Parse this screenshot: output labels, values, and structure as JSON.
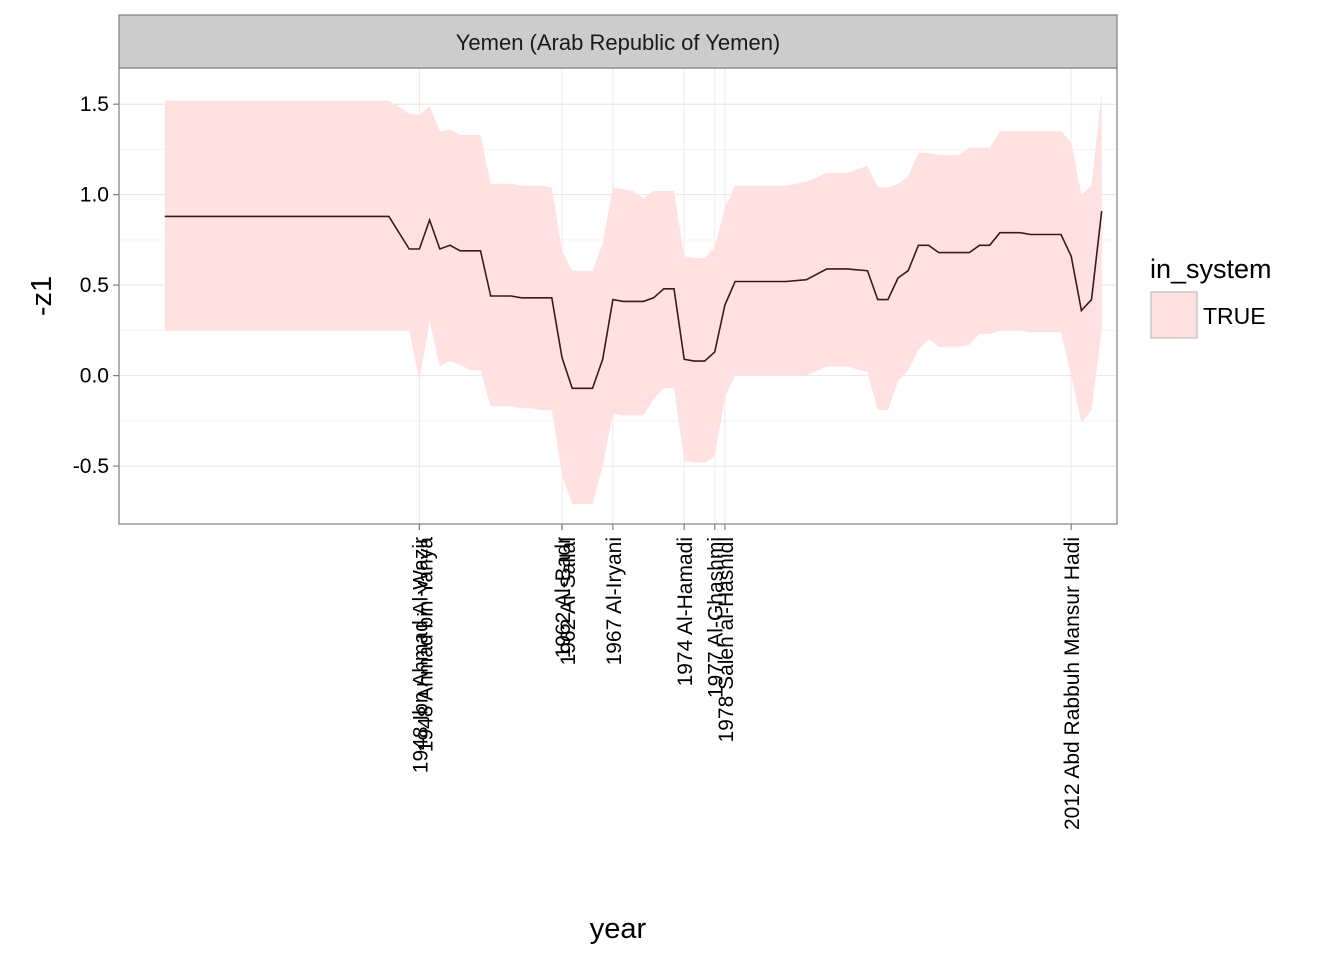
{
  "chart_data": {
    "type": "area",
    "title": "Yemen (Arab Republic of Yemen)",
    "xlabel": "year",
    "ylabel": "-z1",
    "xlim": [
      1918.5,
      2016.5
    ],
    "ylim": [
      -0.82,
      1.7
    ],
    "y_ticks": [
      -0.5,
      0.0,
      0.5,
      1.0,
      1.5
    ],
    "y_tick_labels": [
      "-0.5",
      "0.0",
      "0.5",
      "1.0",
      "1.5"
    ],
    "grid": true,
    "legend": {
      "title": "in_system",
      "entries": [
        {
          "label": "TRUE",
          "fill": "#ffe1e1"
        }
      ],
      "placement": "right"
    },
    "colors": {
      "ribbon": "#ffe1e1",
      "line": "#3a1a1a",
      "strip": "#cccccc",
      "frame": "#7f7f7f"
    },
    "leader_events": [
      {
        "year": 1948,
        "label": "1948 Ibn Ahmad Al-Wazir"
      },
      {
        "year": 1948,
        "label": "1948 Ahmad bin Yahya"
      },
      {
        "year": 1962,
        "label": "1962 Al-Badr"
      },
      {
        "year": 1962,
        "label": "1962 Al-Sallal"
      },
      {
        "year": 1967,
        "label": "1967 Al-Iryani"
      },
      {
        "year": 1974,
        "label": "1974 Al-Hamadi"
      },
      {
        "year": 1977,
        "label": "1977 Al-Ghashmi"
      },
      {
        "year": 1978,
        "label": "1978 Saleh al-Hashidi"
      },
      {
        "year": 2012,
        "label": "2012 Abd Rabbuh Mansur Hadi"
      }
    ],
    "series": [
      {
        "x": [
          1923,
          1924,
          1926,
          1930,
          1935,
          1940,
          1945,
          1947,
          1948,
          1949,
          1950,
          1951,
          1952,
          1953,
          1954,
          1955,
          1956,
          1957,
          1958,
          1959,
          1960,
          1961,
          1962,
          1963,
          1964,
          1965,
          1966,
          1967,
          1968,
          1969,
          1970,
          1971,
          1972,
          1973,
          1974,
          1975,
          1976,
          1977,
          1978,
          1979,
          1980,
          1982,
          1984,
          1986,
          1988,
          1990,
          1992,
          1993,
          1994,
          1995,
          1996,
          1997,
          1998,
          1999,
          2000,
          2001,
          2002,
          2003,
          2004,
          2005,
          2006,
          2007,
          2008,
          2010,
          2011,
          2012,
          2013,
          2014,
          2015
        ],
        "y": [
          0.88,
          0.88,
          0.88,
          0.88,
          0.88,
          0.88,
          0.88,
          0.7,
          0.7,
          0.86,
          0.7,
          0.72,
          0.69,
          0.69,
          0.69,
          0.44,
          0.44,
          0.44,
          0.43,
          0.43,
          0.43,
          0.43,
          0.1,
          -0.07,
          -0.07,
          -0.07,
          0.09,
          0.42,
          0.41,
          0.41,
          0.41,
          0.43,
          0.48,
          0.48,
          0.09,
          0.08,
          0.08,
          0.13,
          0.39,
          0.52,
          0.52,
          0.52,
          0.52,
          0.53,
          0.59,
          0.59,
          0.58,
          0.42,
          0.42,
          0.54,
          0.58,
          0.72,
          0.72,
          0.68,
          0.68,
          0.68,
          0.68,
          0.72,
          0.72,
          0.79,
          0.79,
          0.79,
          0.78,
          0.78,
          0.78,
          0.66,
          0.36,
          0.42,
          0.91
        ],
        "lower": [
          0.25,
          0.25,
          0.25,
          0.25,
          0.25,
          0.25,
          0.25,
          0.25,
          -0.03,
          0.3,
          0.05,
          0.08,
          0.06,
          0.03,
          0.03,
          -0.17,
          -0.17,
          -0.17,
          -0.18,
          -0.18,
          -0.19,
          -0.19,
          -0.55,
          -0.71,
          -0.71,
          -0.71,
          -0.5,
          -0.21,
          -0.22,
          -0.22,
          -0.22,
          -0.13,
          -0.07,
          -0.07,
          -0.47,
          -0.48,
          -0.48,
          -0.45,
          -0.12,
          0.0,
          0.0,
          0.0,
          0.0,
          0.0,
          0.05,
          0.05,
          0.02,
          -0.19,
          -0.19,
          -0.03,
          0.03,
          0.14,
          0.2,
          0.16,
          0.16,
          0.16,
          0.17,
          0.23,
          0.23,
          0.25,
          0.25,
          0.25,
          0.24,
          0.24,
          0.24,
          0.0,
          -0.26,
          -0.19,
          0.25
        ],
        "upper": [
          1.52,
          1.52,
          1.52,
          1.52,
          1.52,
          1.52,
          1.52,
          1.45,
          1.44,
          1.49,
          1.35,
          1.36,
          1.33,
          1.33,
          1.33,
          1.06,
          1.06,
          1.06,
          1.05,
          1.05,
          1.05,
          1.04,
          0.69,
          0.58,
          0.58,
          0.58,
          0.73,
          1.04,
          1.03,
          1.02,
          0.98,
          1.02,
          1.02,
          1.02,
          0.66,
          0.65,
          0.65,
          0.71,
          0.93,
          1.05,
          1.05,
          1.05,
          1.05,
          1.07,
          1.12,
          1.12,
          1.16,
          1.04,
          1.04,
          1.06,
          1.1,
          1.23,
          1.23,
          1.22,
          1.22,
          1.22,
          1.26,
          1.26,
          1.26,
          1.35,
          1.35,
          1.35,
          1.35,
          1.35,
          1.35,
          1.29,
          1.0,
          1.05,
          1.57
        ]
      }
    ]
  }
}
